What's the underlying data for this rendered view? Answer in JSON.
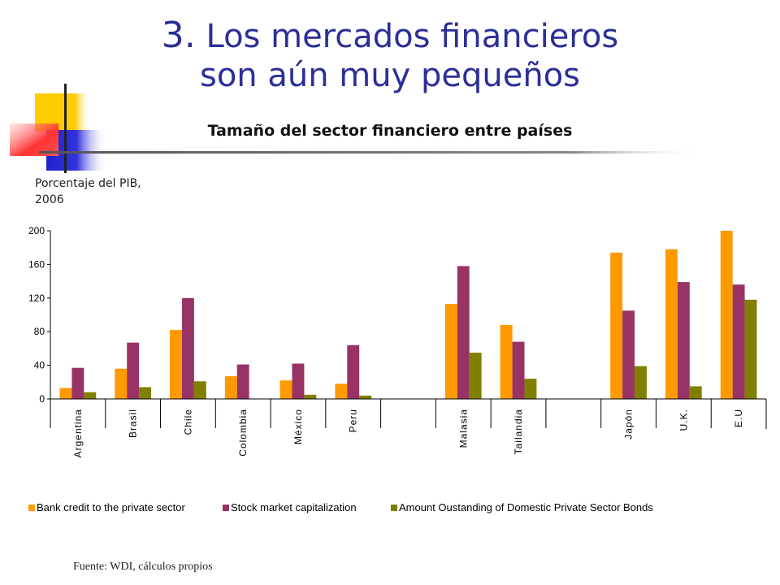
{
  "slide": {
    "title_number": "3.",
    "title_line1": "Los mercados financieros",
    "title_line2": "son aún muy pequeños",
    "source": "Fuente: WDI, cálculos propios"
  },
  "chart_data": {
    "type": "bar",
    "title": "Tamaño del sector financiero entre países",
    "ylabel": "Porcentaje del PIB, 2006",
    "xlabel": "",
    "ylim": [
      0,
      200
    ],
    "yticks": [
      0,
      40,
      80,
      120,
      160,
      200
    ],
    "grid": false,
    "legend_position": "bottom",
    "categories": [
      "Argentina",
      "Brasil",
      "Chile",
      "Colombia",
      "México",
      "Peru",
      "",
      "Malasia",
      "Tailandia",
      "",
      "Japón",
      "U.K.",
      "E.U"
    ],
    "series": [
      {
        "name": "Bank credit to the private sector",
        "color": "#ff9900",
        "values": [
          13,
          36,
          82,
          27,
          22,
          18,
          null,
          113,
          88,
          null,
          174,
          178,
          200
        ]
      },
      {
        "name": "Stock market capitalization",
        "color": "#993366",
        "values": [
          37,
          67,
          120,
          41,
          42,
          64,
          null,
          158,
          68,
          null,
          105,
          139,
          136
        ]
      },
      {
        "name": "Amount Oustanding of Domestic Private Sector Bonds",
        "color": "#808000",
        "values": [
          8,
          14,
          21,
          0,
          5,
          4,
          null,
          55,
          24,
          null,
          39,
          15,
          118
        ]
      }
    ]
  }
}
